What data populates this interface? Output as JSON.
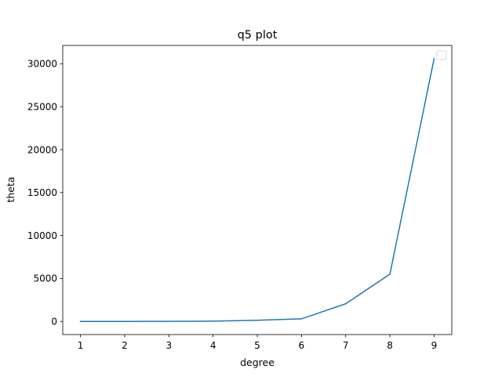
{
  "chart_data": {
    "type": "line",
    "title": "q5 plot",
    "xlabel": "degree",
    "ylabel": "theta",
    "xlim": [
      0.6,
      9.4
    ],
    "ylim": [
      -1530,
      32130
    ],
    "xticks": [
      1,
      2,
      3,
      4,
      5,
      6,
      7,
      8,
      9
    ],
    "yticks": [
      0,
      5000,
      10000,
      15000,
      20000,
      25000,
      30000
    ],
    "grid": false,
    "legend": "top-right (empty)",
    "series": [
      {
        "color": "#1f77b4",
        "x": [
          1,
          2,
          3,
          4,
          5,
          6,
          7,
          8,
          9
        ],
        "y": [
          0,
          2,
          5,
          30,
          140,
          300,
          2050,
          5500,
          30600
        ]
      }
    ]
  }
}
